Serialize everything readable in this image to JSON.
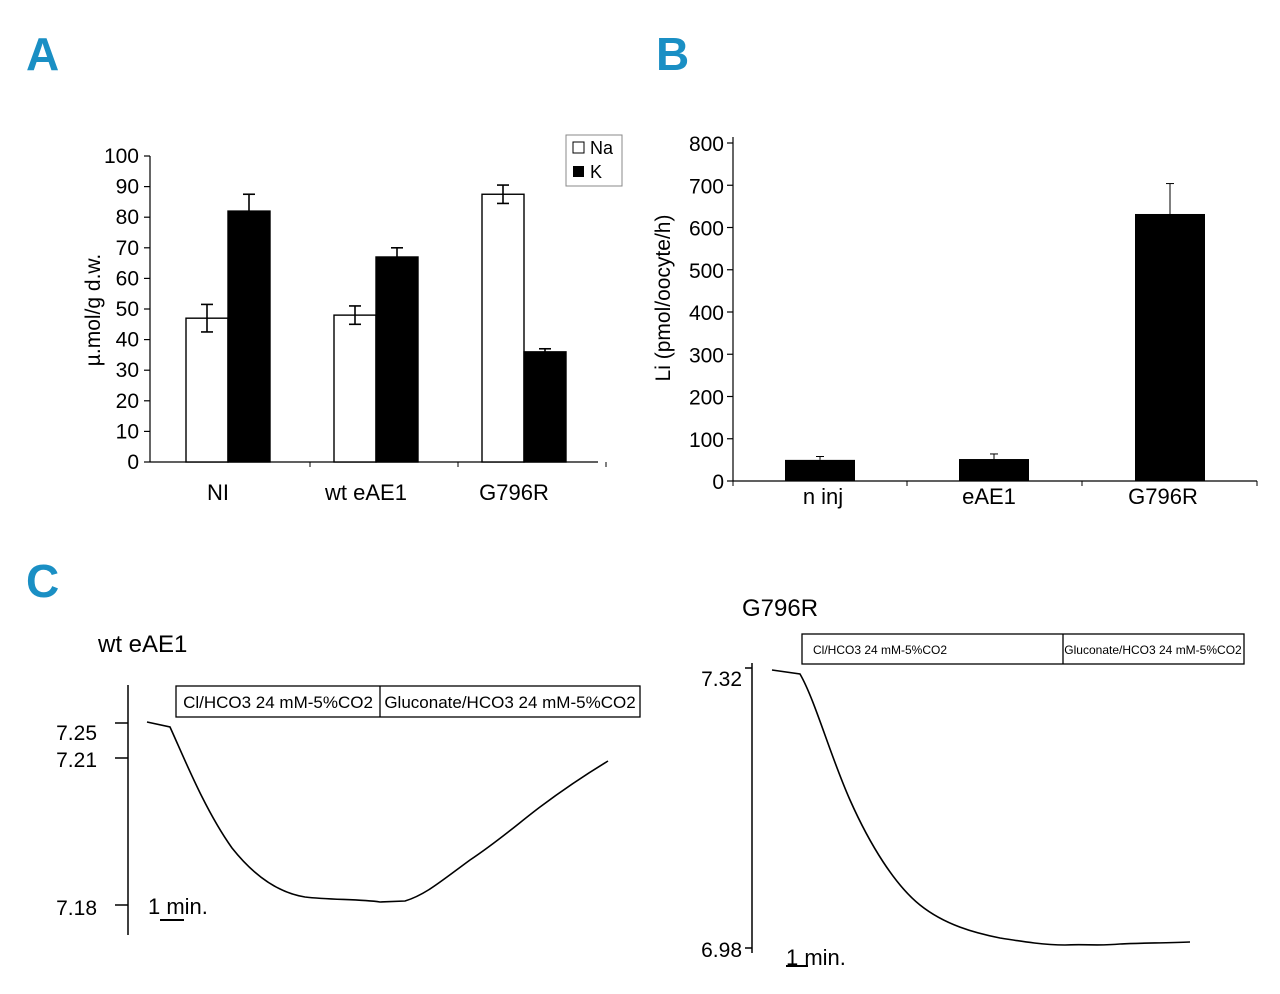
{
  "panels": {
    "a": "A",
    "b": "B",
    "c": "C"
  },
  "chart_data": [
    {
      "id": "A",
      "type": "bar",
      "title": "",
      "xlabel": "",
      "ylabel": "µ.mol/g d.w.",
      "ylim": [
        0,
        100
      ],
      "yticks": [
        0,
        10,
        20,
        30,
        40,
        50,
        60,
        70,
        80,
        90,
        100
      ],
      "categories": [
        "NI",
        "wt eAE1",
        "G796R"
      ],
      "legend": {
        "placement": "top-right",
        "entries": [
          "Na",
          "K"
        ]
      },
      "series": [
        {
          "name": "Na",
          "fill": "#ffffff",
          "values": [
            47,
            48,
            87.5
          ],
          "errors": [
            4.5,
            3,
            3
          ]
        },
        {
          "name": "K",
          "fill": "#000000",
          "values": [
            82,
            67,
            36
          ],
          "errors": [
            5.5,
            3,
            1
          ]
        }
      ]
    },
    {
      "id": "B",
      "type": "bar",
      "title": "",
      "xlabel": "",
      "ylabel": "Li (pmol/oocyte/h)",
      "ylim": [
        0,
        800
      ],
      "yticks": [
        0,
        100,
        200,
        300,
        400,
        500,
        600,
        700,
        800
      ],
      "categories": [
        "n inj",
        "eAE1",
        "G796R"
      ],
      "series": [
        {
          "name": "Li",
          "fill": "#000000",
          "values": [
            50,
            52,
            632
          ],
          "errors": [
            8,
            12,
            72
          ]
        }
      ]
    },
    {
      "id": "C-left",
      "type": "line",
      "title": "wt eAE1",
      "yticks": [
        7.25,
        7.21,
        7.18
      ],
      "conditions": [
        "Cl/HCO3 24 mM-5%CO2",
        "Gluconate/HCO3 24 mM-5%CO2"
      ],
      "scale_label": "1 min."
    },
    {
      "id": "C-right",
      "type": "line",
      "title": "G796R",
      "yticks": [
        7.32,
        6.98
      ],
      "conditions": [
        "Cl/HCO3 24 mM-5%CO2",
        "Gluconate/HCO3 24 mM-5%CO2"
      ],
      "scale_label": "1 min."
    }
  ]
}
